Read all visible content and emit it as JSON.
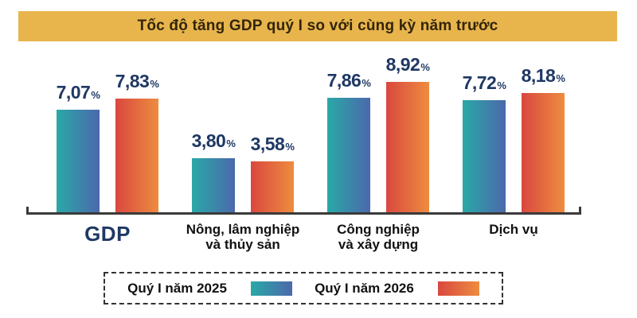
{
  "title": "Tốc độ tăng GDP quý I so với cùng kỳ năm trước",
  "colors": {
    "background": "#FFFFFF",
    "banner_bg": "#E7B54C",
    "title_text": "#33240A",
    "series1_gradient_start": "#29A9A7",
    "series1_gradient_end": "#4C68AC",
    "series2_gradient_start": "#D9483F",
    "series2_gradient_end": "#EE8C3F",
    "value_label": "#1F3864",
    "gdp_category_label": "#1F3864",
    "category_label": "#111111",
    "axis_line": "#3A3A3A",
    "legend_border": "#333333"
  },
  "chart_data": {
    "type": "bar",
    "title": "Tốc độ tăng GDP quý I so với cùng kỳ năm trước",
    "unit": "%",
    "categories": [
      "GDP",
      "Nông, lâm nghiệp và thủy sản",
      "Công nghiệp và xây dựng",
      "Dịch vụ"
    ],
    "category_lines": [
      [
        "GDP"
      ],
      [
        "Nông, lâm nghiệp",
        "và thủy sản"
      ],
      [
        "Công nghiệp",
        "và xây dựng"
      ],
      [
        "Dịch vụ"
      ]
    ],
    "emphasized_category_index": 0,
    "series": [
      {
        "name": "Quý I năm 2025",
        "values": [
          7.07,
          3.8,
          7.86,
          7.72
        ],
        "display_labels": [
          "7,07",
          "3,80",
          "7,86",
          "7,72"
        ]
      },
      {
        "name": "Quý I năm 2026",
        "values": [
          7.83,
          3.58,
          8.92,
          8.18
        ],
        "display_labels": [
          "7,83",
          "3,58",
          "8,92",
          "8,18"
        ]
      }
    ],
    "ylim": [
      0,
      10
    ],
    "grid": false,
    "legend_position": "bottom"
  },
  "legend": {
    "items": [
      {
        "label": "Quý I năm 2025",
        "swatch": "series1"
      },
      {
        "label": "Quý I năm 2026",
        "swatch": "series2"
      }
    ]
  }
}
